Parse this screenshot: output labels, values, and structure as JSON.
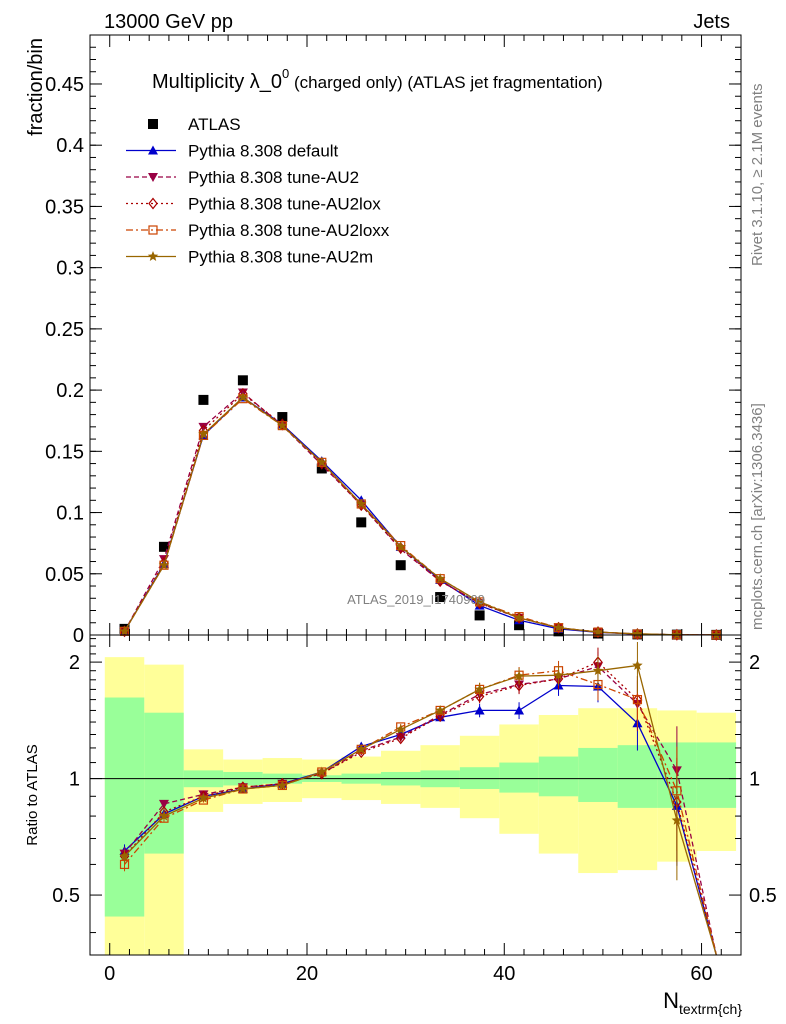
{
  "header": {
    "energy_label": "13000 GeV pp",
    "category_label": "Jets"
  },
  "side_labels": {
    "rivet": "Rivet 3.1.10, ≥ 2.1M events",
    "mcplots": "mcplots.cern.ch [arXiv:1306.3436]"
  },
  "watermark": "ATLAS_2019_I1740909",
  "chart_data": [
    {
      "type": "scatter",
      "panel": "main",
      "title": "Multiplicity λ_0⁰ (charged only) (ATLAS jet fragmentation)",
      "title_main": "Multiplicity λ_0",
      "title_sup": "0",
      "title_rest": " (charged only) (ATLAS jet fragmentation)",
      "ylabel": "fraction/bin",
      "xlabel": "N",
      "xlabel_sub": "textrm{ch}",
      "xlim": [
        -2,
        64
      ],
      "ylim": [
        0,
        0.49
      ],
      "yticks": [
        0,
        0.05,
        0.1,
        0.15,
        0.2,
        0.25,
        0.3,
        0.35,
        0.4,
        0.45
      ],
      "ytick_labels": [
        "0",
        "0.05",
        "0.1",
        "0.15",
        "0.2",
        "0.25",
        "0.3",
        "0.35",
        "0.4",
        "0.45"
      ],
      "x": [
        1.5,
        5.5,
        9.5,
        13.5,
        17.5,
        21.5,
        25.5,
        29.5,
        33.5,
        37.5,
        41.5,
        45.5,
        49.5,
        53.5,
        57.5,
        61.5
      ],
      "legend_position": "top-left",
      "series": [
        {
          "name": "ATLAS",
          "color": "#000000",
          "marker": "square",
          "dash": "none",
          "values": [
            0.005,
            0.072,
            0.192,
            0.208,
            0.178,
            0.136,
            0.092,
            0.057,
            0.031,
            0.016,
            0.008,
            0.003,
            0.0012,
            0.0005,
            0.0003,
            0.0001
          ]
        },
        {
          "name": "Pythia 8.308 default",
          "color": "#0000cc",
          "marker": "triangle-up",
          "dash": "solid",
          "values": [
            0.003,
            0.058,
            0.163,
            0.194,
            0.172,
            0.142,
            0.11,
            0.072,
            0.045,
            0.024,
            0.012,
            0.005,
            0.0022,
            0.0007,
            0.0002,
            5e-05
          ]
        },
        {
          "name": "Pythia 8.308 tune-AU2",
          "color": "#990044",
          "marker": "triangle-down",
          "dash": "5,3",
          "values": [
            0.003,
            0.062,
            0.17,
            0.198,
            0.171,
            0.139,
            0.106,
            0.07,
            0.044,
            0.026,
            0.014,
            0.006,
            0.0024,
            0.0009,
            0.0002,
            5e-05
          ]
        },
        {
          "name": "Pythia 8.308 tune-AU2lox",
          "color": "#aa0000",
          "marker": "diamond-open",
          "dash": "2,3",
          "values": [
            0.003,
            0.059,
            0.167,
            0.197,
            0.172,
            0.14,
            0.106,
            0.071,
            0.044,
            0.026,
            0.014,
            0.006,
            0.0024,
            0.0008,
            0.0002,
            5e-05
          ]
        },
        {
          "name": "Pythia 8.308 tune-AU2loxx",
          "color": "#cc4400",
          "marker": "square-open",
          "dash": "7,3,2,3",
          "values": [
            0.003,
            0.057,
            0.163,
            0.193,
            0.171,
            0.141,
            0.107,
            0.073,
            0.046,
            0.027,
            0.015,
            0.006,
            0.0024,
            0.0008,
            0.0002,
            5e-05
          ]
        },
        {
          "name": "Pythia 8.308 tune-AU2m",
          "color": "#996600",
          "marker": "star",
          "dash": "solid",
          "values": [
            0.003,
            0.057,
            0.164,
            0.194,
            0.171,
            0.141,
            0.107,
            0.072,
            0.046,
            0.027,
            0.014,
            0.006,
            0.0024,
            0.001,
            0.0002,
            5e-05
          ]
        }
      ]
    },
    {
      "type": "line",
      "panel": "ratio",
      "ylabel": "Ratio to ATLAS",
      "ylog": true,
      "xlim": [
        -2,
        64
      ],
      "ylim": [
        0.35,
        2.35
      ],
      "xticks": [
        0,
        20,
        40,
        60
      ],
      "xtick_labels": [
        "0",
        "20",
        "40",
        "60"
      ],
      "yticks": [
        0.5,
        1,
        2
      ],
      "ytick_labels": [
        "0.5",
        "1",
        "2"
      ],
      "bin_edges": [
        -0.5,
        3.5,
        7.5,
        11.5,
        15.5,
        19.5,
        23.5,
        27.5,
        31.5,
        35.5,
        39.5,
        43.5,
        47.5,
        51.5,
        55.5,
        59.5,
        63.5
      ],
      "band_stat": {
        "color": "#99ff99",
        "low": [
          0.44,
          0.64,
          0.95,
          0.96,
          0.97,
          0.98,
          0.97,
          0.96,
          0.95,
          0.94,
          0.92,
          0.9,
          0.87,
          0.84,
          0.84,
          0.84
        ],
        "high": [
          1.62,
          1.48,
          1.05,
          1.04,
          1.03,
          1.02,
          1.03,
          1.04,
          1.05,
          1.07,
          1.1,
          1.14,
          1.2,
          1.22,
          1.24,
          1.24
        ]
      },
      "band_total": {
        "color": "#ffff99",
        "low": [
          0.34,
          0.35,
          0.82,
          0.86,
          0.87,
          0.89,
          0.88,
          0.86,
          0.84,
          0.79,
          0.72,
          0.64,
          0.57,
          0.58,
          0.61,
          0.65
        ],
        "high": [
          2.06,
          1.97,
          1.19,
          1.12,
          1.13,
          1.12,
          1.14,
          1.18,
          1.22,
          1.29,
          1.38,
          1.46,
          1.52,
          1.52,
          1.5,
          1.48
        ]
      },
      "x": [
        1.5,
        5.5,
        9.5,
        13.5,
        17.5,
        21.5,
        25.5,
        29.5,
        33.5,
        37.5,
        41.5,
        45.5,
        49.5,
        53.5,
        57.5,
        61.5
      ],
      "series": [
        {
          "name": "Pythia 8.308 default",
          "values": [
            0.65,
            0.81,
            0.9,
            0.94,
            0.97,
            1.04,
            1.21,
            1.3,
            1.44,
            1.5,
            1.5,
            1.74,
            1.73,
            1.39,
            0.85,
            0.3
          ]
        },
        {
          "name": "Pythia 8.308 tune-AU2",
          "values": [
            0.64,
            0.86,
            0.91,
            0.95,
            0.97,
            1.03,
            1.18,
            1.28,
            1.46,
            1.65,
            1.75,
            1.81,
            1.95,
            1.56,
            1.05,
            0.3
          ]
        },
        {
          "name": "Pythia 8.308 tune-AU2lox",
          "values": [
            0.63,
            0.82,
            0.9,
            0.95,
            0.97,
            1.03,
            1.17,
            1.27,
            1.45,
            1.63,
            1.74,
            1.81,
            2.0,
            1.6,
            0.87,
            0.3
          ]
        },
        {
          "name": "Pythia 8.308 tune-AU2loxx",
          "values": [
            0.6,
            0.79,
            0.88,
            0.94,
            0.96,
            1.04,
            1.19,
            1.36,
            1.5,
            1.7,
            1.85,
            1.9,
            1.75,
            1.6,
            0.93,
            0.3
          ]
        },
        {
          "name": "Pythia 8.308 tune-AU2m",
          "values": [
            0.63,
            0.8,
            0.89,
            0.94,
            0.96,
            1.04,
            1.19,
            1.34,
            1.5,
            1.7,
            1.84,
            1.85,
            1.9,
            1.96,
            0.78,
            0.3
          ]
        }
      ],
      "errors": [
        0.04,
        0.02,
        0.015,
        0.012,
        0.012,
        0.012,
        0.014,
        0.018,
        0.025,
        0.04,
        0.05,
        0.06,
        0.09,
        0.15,
        0.3,
        0.0
      ]
    }
  ]
}
